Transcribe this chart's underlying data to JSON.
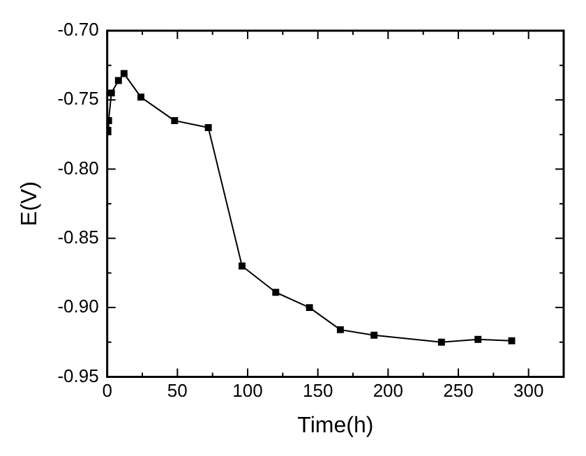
{
  "chart_data": {
    "type": "line",
    "xlabel": "Time(h)",
    "ylabel": "E(V)",
    "x": [
      0.5,
      1,
      3,
      8,
      12,
      24,
      48,
      72,
      96,
      120,
      144,
      166,
      190,
      238,
      264,
      288
    ],
    "values": [
      -0.772,
      -0.765,
      -0.745,
      -0.736,
      -0.731,
      -0.748,
      -0.765,
      -0.77,
      -0.87,
      -0.889,
      -0.9,
      -0.916,
      -0.92,
      -0.925,
      -0.923,
      -0.924
    ],
    "color": "#000000",
    "marker": "square",
    "line_style": "solid",
    "grid": false,
    "legend": false,
    "xlim": [
      0,
      325
    ],
    "ylim": [
      -0.95,
      -0.7
    ],
    "xticks": [
      0,
      {
        "value": 25,
        "label": null
      },
      50,
      {
        "value": 75,
        "label": null
      },
      100,
      {
        "value": 125,
        "label": null
      },
      150,
      {
        "value": 175,
        "label": null
      },
      200,
      {
        "value": 225,
        "label": null
      },
      250,
      {
        "value": 275,
        "label": null
      },
      300,
      {
        "value": 325,
        "label": null
      }
    ],
    "yticks": [
      {
        "value": -0.95,
        "label": "-0.95"
      },
      {
        "value": -0.925,
        "label": null
      },
      {
        "value": -0.9,
        "label": "-0.90"
      },
      {
        "value": -0.875,
        "label": null
      },
      {
        "value": -0.85,
        "label": "-0.85"
      },
      {
        "value": -0.825,
        "label": null
      },
      {
        "value": -0.8,
        "label": "-0.80"
      },
      {
        "value": -0.775,
        "label": null
      },
      {
        "value": -0.75,
        "label": "-0.75"
      },
      {
        "value": -0.725,
        "label": null
      },
      {
        "value": -0.7,
        "label": "-0.70"
      }
    ]
  }
}
